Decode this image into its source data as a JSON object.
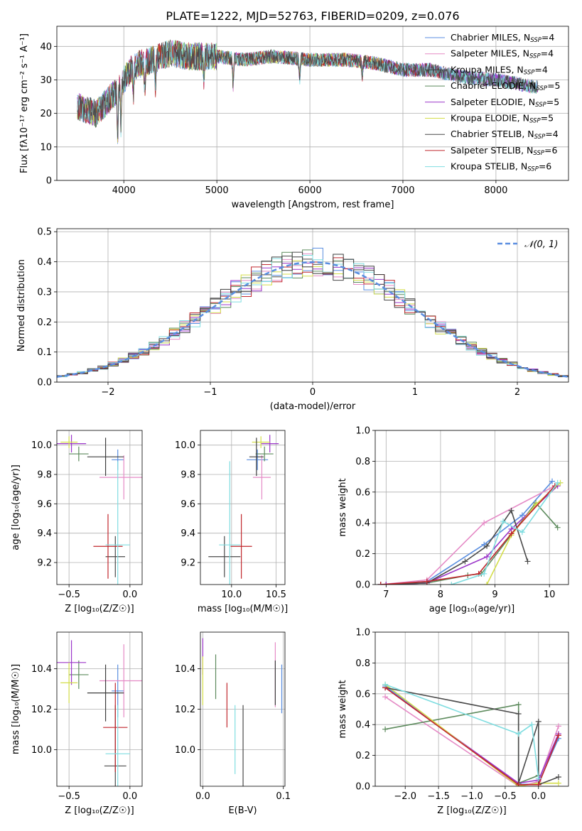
{
  "figure_title": "PLATE=1222, MJD=52763, FIBERID=0209, z=0.076",
  "models": [
    {
      "name": "Chabrier MILES",
      "nssp": "4",
      "color": "#5a8ee0"
    },
    {
      "name": "Salpeter MILES",
      "nssp": "4",
      "color": "#e58bc6"
    },
    {
      "name": "Kroupa MILES",
      "nssp": "4",
      "color": "#3d3d3d"
    },
    {
      "name": "Chabrier ELODIE",
      "nssp": "5",
      "color": "#5c8a5c"
    },
    {
      "name": "Salpeter ELODIE",
      "nssp": "5",
      "color": "#9b35c9"
    },
    {
      "name": "Kroupa ELODIE",
      "nssp": "5",
      "color": "#d4de4a"
    },
    {
      "name": "Chabrier STELIB",
      "nssp": "4",
      "color": "#4a4a4a"
    },
    {
      "name": "Salpeter STELIB",
      "nssp": "6",
      "color": "#c1272d"
    },
    {
      "name": "Kroupa STELIB",
      "nssp": "6",
      "color": "#7fdde0"
    }
  ],
  "chart_data": [
    {
      "id": "spectrum",
      "type": "line",
      "xlabel": "wavelength [Angstrom, rest frame]",
      "ylabel": "Flux [fλ10⁻¹⁷ erg cm⁻² s⁻¹ A⁻¹]",
      "xlim": [
        3280,
        8780
      ],
      "ylim": [
        0,
        46
      ],
      "xticks": [
        4000,
        5000,
        6000,
        7000,
        8000
      ],
      "yticks": [
        0,
        10,
        20,
        30,
        40
      ],
      "continuum": {
        "x": [
          3500,
          3700,
          3900,
          4000,
          4100,
          4300,
          4500,
          4700,
          5000,
          5300,
          5600,
          6000,
          6400,
          6700,
          7000,
          7300,
          7600,
          8000,
          8400
        ],
        "y": [
          22,
          20,
          26,
          30,
          34,
          36,
          38,
          37,
          37,
          36,
          37,
          36,
          36,
          35,
          33,
          33,
          31,
          30,
          28
        ]
      },
      "absorption_features": [
        {
          "x": 3934,
          "depth": 14
        },
        {
          "x": 3969,
          "depth": 12
        },
        {
          "x": 4102,
          "depth": 8
        },
        {
          "x": 4226,
          "depth": 10
        },
        {
          "x": 4340,
          "depth": 8
        },
        {
          "x": 4861,
          "depth": 6
        },
        {
          "x": 5175,
          "depth": 8
        },
        {
          "x": 5890,
          "depth": 6
        },
        {
          "x": 6563,
          "depth": 4
        }
      ]
    },
    {
      "id": "residuals",
      "type": "histogram",
      "xlabel": "(data-model)/error",
      "ylabel": "Normed distribution",
      "xlim": [
        -2.5,
        2.5
      ],
      "ylim": [
        0,
        0.51
      ],
      "xticks": [
        -2,
        -1,
        0,
        1,
        2
      ],
      "yticks": [
        0.0,
        0.1,
        0.2,
        0.3,
        0.4,
        0.5
      ],
      "legend": "𝒩(0, 1)",
      "legend_loc": "upper right",
      "bin_width": 0.1
    },
    {
      "id": "age_vs_Z",
      "type": "errorbar",
      "xlabel": "Z [log₁₀(Z/Z☉)]",
      "ylabel": "age  [log₁₀(age/yr)]",
      "xlim": [
        -0.6,
        0.1
      ],
      "ylim": [
        9.05,
        10.1
      ],
      "xticks": [
        -0.5,
        -0.0
      ],
      "yticks": [
        9.2,
        9.4,
        9.6,
        9.8,
        10.0
      ],
      "points": [
        {
          "model": 0,
          "x": -0.1,
          "xerr": 0.05,
          "y": 9.9,
          "yerr": 0.07
        },
        {
          "model": 1,
          "x": -0.05,
          "xerr": 0.2,
          "y": 9.78,
          "yerr": 0.15
        },
        {
          "model": 3,
          "x": -0.42,
          "xerr": 0.08,
          "y": 9.94,
          "yerr": 0.05
        },
        {
          "model": 4,
          "x": -0.48,
          "xerr": 0.12,
          "y": 10.01,
          "yerr": 0.06
        },
        {
          "model": 5,
          "x": -0.5,
          "xerr": 0.07,
          "y": 10.02,
          "yerr": 0.04
        },
        {
          "model": 6,
          "x": -0.12,
          "xerr": 0.08,
          "y": 9.24,
          "yerr": 0.14
        },
        {
          "model": 7,
          "x": -0.18,
          "xerr": 0.12,
          "y": 9.31,
          "yerr": 0.22
        },
        {
          "model": 8,
          "x": -0.1,
          "xerr": 0.1,
          "y": 9.32,
          "yerr": 0.57
        },
        {
          "model": 2,
          "x": -0.2,
          "xerr": 0.15,
          "y": 9.92,
          "yerr": 0.13
        }
      ]
    },
    {
      "id": "age_vs_mass",
      "type": "errorbar",
      "xlabel": "mass [log₁₀(M/M☉)]",
      "ylabel": "",
      "xlim": [
        9.65,
        10.6
      ],
      "ylim": [
        9.05,
        10.1
      ],
      "xticks": [
        10.0,
        10.5
      ],
      "yticks": [
        9.2,
        9.4,
        9.6,
        9.8,
        10.0
      ],
      "points": [
        {
          "model": 0,
          "x": 10.29,
          "xerr": 0.12,
          "y": 9.9,
          "yerr": 0.07
        },
        {
          "model": 1,
          "x": 10.34,
          "xerr": 0.1,
          "y": 9.78,
          "yerr": 0.15
        },
        {
          "model": 3,
          "x": 10.37,
          "xerr": 0.1,
          "y": 9.94,
          "yerr": 0.05
        },
        {
          "model": 4,
          "x": 10.43,
          "xerr": 0.1,
          "y": 10.01,
          "yerr": 0.06
        },
        {
          "model": 5,
          "x": 10.33,
          "xerr": 0.1,
          "y": 10.02,
          "yerr": 0.04
        },
        {
          "model": 6,
          "x": 9.92,
          "xerr": 0.18,
          "y": 9.24,
          "yerr": 0.14
        },
        {
          "model": 7,
          "x": 10.11,
          "xerr": 0.12,
          "y": 9.31,
          "yerr": 0.22
        },
        {
          "model": 8,
          "x": 9.98,
          "xerr": 0.12,
          "y": 9.32,
          "yerr": 0.57
        },
        {
          "model": 2,
          "x": 10.28,
          "xerr": 0.08,
          "y": 9.92,
          "yerr": 0.13
        }
      ]
    },
    {
      "id": "weight_vs_age",
      "type": "line",
      "xlabel": "age  [log₁₀(age/yr)]",
      "ylabel": "mass weight",
      "xlim": [
        6.8,
        10.35
      ],
      "ylim": [
        0,
        1
      ],
      "xticks": [
        7,
        8,
        9,
        10
      ],
      "yticks": [
        0.0,
        0.2,
        0.4,
        0.6,
        0.8,
        1.0
      ],
      "series": [
        {
          "model": 0,
          "x": [
            6.9,
            7.75,
            8.8,
            9.5,
            10.05
          ],
          "y": [
            0.0,
            0.02,
            0.26,
            0.45,
            0.67
          ]
        },
        {
          "model": 1,
          "x": [
            6.9,
            7.75,
            8.8,
            10.1
          ],
          "y": [
            0.0,
            0.03,
            0.4,
            0.64
          ]
        },
        {
          "model": 3,
          "x": [
            7.0,
            7.75,
            8.5,
            8.75,
            9.75,
            10.15
          ],
          "y": [
            0.0,
            0.01,
            0.06,
            0.07,
            0.53,
            0.37
          ]
        },
        {
          "model": 4,
          "x": [
            7.0,
            7.75,
            8.85,
            9.3,
            10.15
          ],
          "y": [
            0.0,
            0.01,
            0.18,
            0.36,
            0.64
          ]
        },
        {
          "model": 5,
          "x": [
            8.85,
            9.3,
            9.75,
            10.2
          ],
          "y": [
            0.0,
            0.32,
            0.52,
            0.66
          ]
        },
        {
          "model": 6,
          "x": [
            6.9,
            7.75,
            8.45,
            8.85,
            9.3,
            9.6
          ],
          "y": [
            0.0,
            0.01,
            0.15,
            0.25,
            0.48,
            0.15
          ]
        },
        {
          "model": 7,
          "x": [
            6.9,
            7.75,
            8.7,
            9.3,
            10.1
          ],
          "y": [
            0.0,
            0.02,
            0.07,
            0.33,
            0.64
          ]
        },
        {
          "model": 8,
          "x": [
            8.2,
            8.8,
            9.15,
            9.5,
            10.15
          ],
          "y": [
            0.0,
            0.07,
            0.41,
            0.34,
            0.66
          ]
        }
      ]
    },
    {
      "id": "mass_vs_Z",
      "type": "errorbar",
      "xlabel": "Z [log₁₀(Z/Z☉)]",
      "ylabel": "mass [log₁₀(M/M☉)]",
      "xlim": [
        -0.6,
        0.1
      ],
      "ylim": [
        9.82,
        10.58
      ],
      "xticks": [
        -0.5,
        -0.0
      ],
      "yticks": [
        10.0,
        10.2,
        10.4
      ],
      "points": [
        {
          "model": 0,
          "x": -0.1,
          "xerr": 0.05,
          "y": 10.29,
          "yerr": 0.13
        },
        {
          "model": 1,
          "x": -0.05,
          "xerr": 0.2,
          "y": 10.34,
          "yerr": 0.18
        },
        {
          "model": 3,
          "x": -0.42,
          "xerr": 0.08,
          "y": 10.37,
          "yerr": 0.07
        },
        {
          "model": 4,
          "x": -0.48,
          "xerr": 0.12,
          "y": 10.43,
          "yerr": 0.11
        },
        {
          "model": 5,
          "x": -0.5,
          "xerr": 0.07,
          "y": 10.33,
          "yerr": 0.1
        },
        {
          "model": 6,
          "x": -0.12,
          "xerr": 0.09,
          "y": 9.92,
          "yerr": 0.3
        },
        {
          "model": 7,
          "x": -0.12,
          "xerr": 0.1,
          "y": 10.11,
          "yerr": 0.22
        },
        {
          "model": 8,
          "x": -0.1,
          "xerr": 0.1,
          "y": 9.98,
          "yerr": 0.24
        },
        {
          "model": 2,
          "x": -0.2,
          "xerr": 0.15,
          "y": 10.28,
          "yerr": 0.14
        }
      ]
    },
    {
      "id": "mass_vs_ebv",
      "type": "errorbar",
      "xlabel": "E(B-V)",
      "ylabel": "",
      "xlim": [
        -0.003,
        0.102
      ],
      "ylim": [
        9.82,
        10.58
      ],
      "xticks": [
        0.0,
        0.1
      ],
      "yticks": [
        10.0,
        10.2,
        10.4
      ],
      "points": [
        {
          "model": 0,
          "x": 0.098,
          "y": 10.3,
          "yerr": 0.12
        },
        {
          "model": 1,
          "x": 0.09,
          "y": 10.37,
          "yerr": 0.16
        },
        {
          "model": 3,
          "x": 0.016,
          "y": 10.36,
          "yerr": 0.11
        },
        {
          "model": 4,
          "x": 0.0,
          "y": 10.46,
          "yerr": 0.09
        },
        {
          "model": 5,
          "x": 0.0,
          "y": 10.34,
          "yerr": 0.12
        },
        {
          "model": 6,
          "x": 0.05,
          "y": 9.94,
          "yerr": 0.28
        },
        {
          "model": 7,
          "x": 0.03,
          "y": 10.22,
          "yerr": 0.11
        },
        {
          "model": 8,
          "x": 0.04,
          "y": 10.05,
          "yerr": 0.17
        },
        {
          "model": 2,
          "x": 0.09,
          "y": 10.33,
          "yerr": 0.11
        }
      ]
    },
    {
      "id": "weight_vs_Z",
      "type": "line",
      "xlabel": "Z [log₁₀(Z/Z☉)]",
      "ylabel": "mass weight",
      "xlim": [
        -2.45,
        0.45
      ],
      "ylim": [
        0,
        1
      ],
      "xticks": [
        -2.0,
        -1.5,
        -1.0,
        -0.5,
        0.0
      ],
      "yticks": [
        0.0,
        0.2,
        0.4,
        0.6,
        0.8,
        1.0
      ],
      "series": [
        {
          "model": 0,
          "x": [
            -2.3,
            -0.3,
            0.0,
            0.3
          ],
          "y": [
            0.65,
            0.01,
            0.02,
            0.31
          ]
        },
        {
          "model": 1,
          "x": [
            -2.3,
            -0.3,
            0.0,
            0.3
          ],
          "y": [
            0.58,
            0.0,
            0.03,
            0.39
          ]
        },
        {
          "model": 3,
          "x": [
            -2.3,
            -0.3,
            -0.3,
            0.0
          ],
          "y": [
            0.37,
            0.53,
            0.02,
            0.07
          ]
        },
        {
          "model": 4,
          "x": [
            -2.3,
            -0.3,
            0.0,
            0.3
          ],
          "y": [
            0.64,
            0.02,
            0.04,
            0.34
          ]
        },
        {
          "model": 5,
          "x": [
            -2.3,
            -0.3,
            0.0,
            0.3
          ],
          "y": [
            0.66,
            0.0,
            0.02,
            0.02
          ]
        },
        {
          "model": 6,
          "x": [
            -2.3,
            -0.3,
            -0.3,
            0.0,
            0.0,
            0.3
          ],
          "y": [
            0.64,
            0.47,
            0.02,
            0.42,
            0.01,
            0.06
          ]
        },
        {
          "model": 7,
          "x": [
            -2.3,
            -0.3,
            0.0,
            0.3
          ],
          "y": [
            0.64,
            0.01,
            0.01,
            0.33
          ]
        },
        {
          "model": 8,
          "x": [
            -2.3,
            -0.3,
            -0.1,
            0.0
          ],
          "y": [
            0.66,
            0.34,
            0.4,
            0.05
          ]
        }
      ]
    }
  ]
}
